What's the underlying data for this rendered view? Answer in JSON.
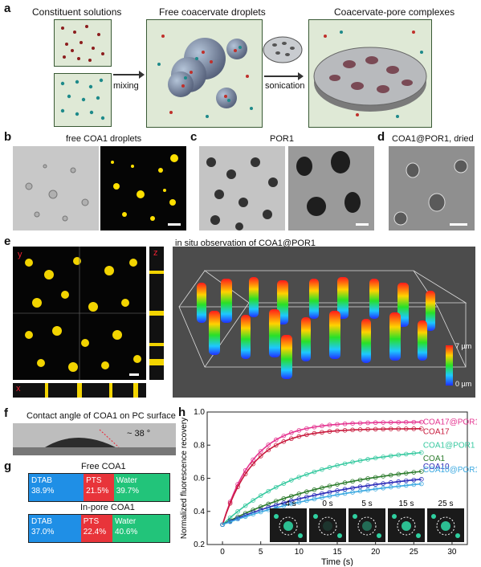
{
  "panels": {
    "a": {
      "letter": "a",
      "labels": [
        "Constituent solutions",
        "Free coacervate droplets",
        "Coacervate-pore complexes"
      ],
      "arrow1": "mixing",
      "arrow2": "sonication"
    },
    "b": {
      "letter": "b",
      "title": "free COA1 droplets"
    },
    "c": {
      "letter": "c",
      "title": "POR1"
    },
    "d": {
      "letter": "d",
      "title": "COA1@POR1, dried"
    },
    "e": {
      "letter": "e",
      "title": "in situ observation of COA1@POR1",
      "ortho": {
        "y": "y",
        "z": "z",
        "x": "x"
      },
      "colorbar": {
        "top": "7 µm",
        "bottom": "0 µm"
      }
    },
    "f": {
      "letter": "f",
      "title": "Contact angle of COA1 on PC surface",
      "angle": "~ 38 °"
    },
    "g": {
      "letter": "g",
      "bars": [
        {
          "title": "Free COA1",
          "segments": [
            {
              "name": "DTAB",
              "value": "38.9%",
              "frac": 0.389,
              "color": "#1f8fe6"
            },
            {
              "name": "PTS",
              "value": "21.5%",
              "frac": 0.215,
              "color": "#e8343a"
            },
            {
              "name": "Water",
              "value": "39.7%",
              "frac": 0.397,
              "color": "#22c47a"
            }
          ]
        },
        {
          "title": "In-pore COA1",
          "segments": [
            {
              "name": "DTAB",
              "value": "37.0%",
              "frac": 0.37,
              "color": "#1f8fe6"
            },
            {
              "name": "PTS",
              "value": "22.4%",
              "frac": 0.224,
              "color": "#e8343a"
            },
            {
              "name": "Water",
              "value": "40.6%",
              "frac": 0.406,
              "color": "#22c47a"
            }
          ]
        }
      ]
    },
    "h": {
      "letter": "h",
      "frames": [
        "- 4 s",
        "0 s",
        "5 s",
        "15 s",
        "25 s"
      ]
    }
  },
  "chart_data": {
    "type": "line",
    "xlabel": "Time (s)",
    "ylabel": "Normalized fluorescence recovery",
    "xlim": [
      -2,
      32
    ],
    "ylim": [
      0.2,
      1.0
    ],
    "xticks": [
      0,
      5,
      10,
      15,
      20,
      25,
      30
    ],
    "yticks": [
      0.2,
      0.4,
      0.6,
      0.8,
      1.0
    ],
    "series": [
      {
        "name": "COA17@POR1",
        "color": "#e4328f",
        "plateau": 0.94,
        "tau": 4.0
      },
      {
        "name": "COA17",
        "color": "#c8193c",
        "plateau": 0.9,
        "tau": 4.0
      },
      {
        "name": "COA1@POR1",
        "color": "#37c9a0",
        "plateau": 0.8,
        "tau": 11.0
      },
      {
        "name": "COA1",
        "color": "#2a7a2a",
        "plateau": 0.72,
        "tau": 16.0
      },
      {
        "name": "COA10",
        "color": "#2b2bb8",
        "plateau": 0.67,
        "tau": 17.0
      },
      {
        "name": "COA10@POR1",
        "color": "#3aa8e0",
        "plateau": 0.65,
        "tau": 19.0
      }
    ]
  }
}
